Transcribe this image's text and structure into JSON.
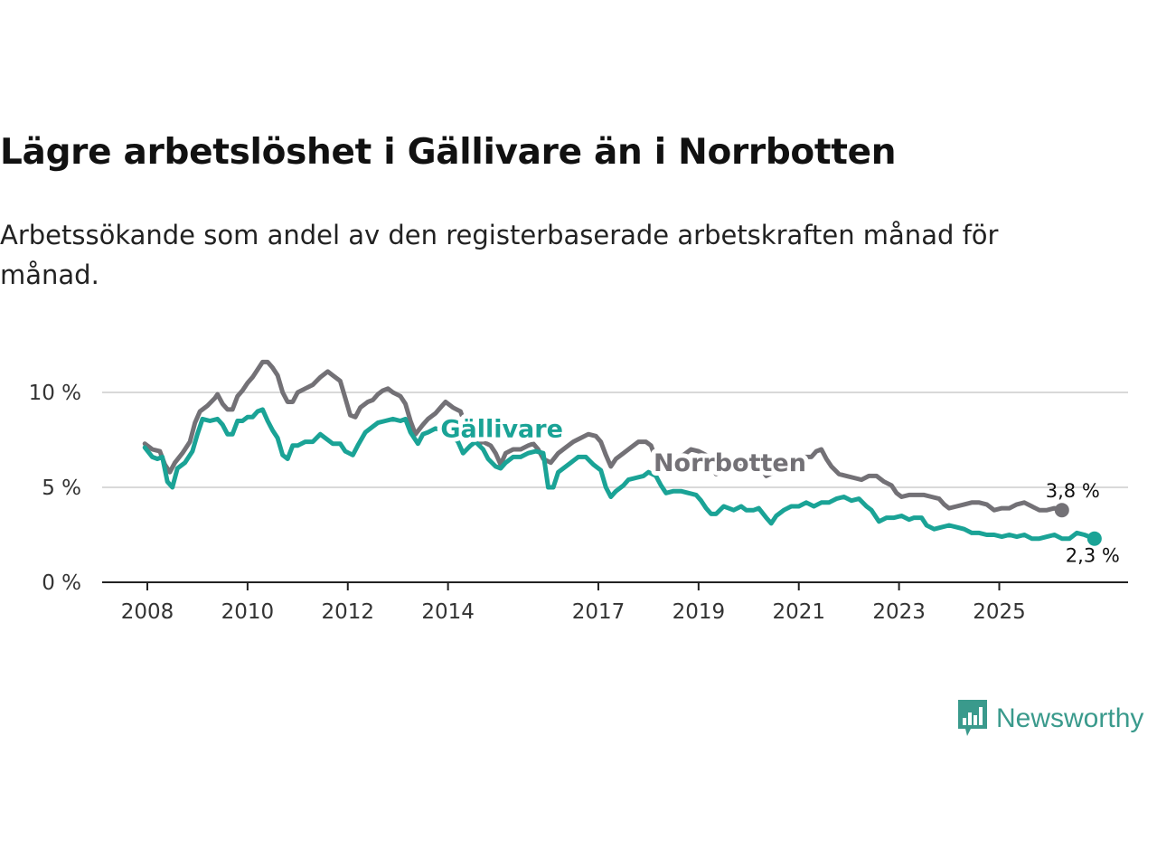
{
  "title": "Lägre arbetslöshet i Gällivare än i Norrbotten",
  "subtitle": "Arbetssökande som andel av den registerbaserade arbetskraften månad för månad.",
  "brand": {
    "name": "Newsworthy",
    "icon": "newsworthy-logo-icon",
    "color": "#3a9a8c"
  },
  "chart_data": {
    "type": "line",
    "title": "Lägre arbetslöshet i Gällivare än i Norrbotten",
    "subtitle": "Arbetssökande som andel av den registerbaserade arbetskraften månad för månad.",
    "xlabel": "",
    "ylabel": "",
    "xlim": [
      2008.0,
      2027.3
    ],
    "ylim": [
      0,
      11
    ],
    "x_ticks": [
      {
        "value": 2008,
        "label": "2008"
      },
      {
        "value": 2010,
        "label": "2010"
      },
      {
        "value": 2012,
        "label": "2012"
      },
      {
        "value": 2014,
        "label": "2014"
      },
      {
        "value": 2017,
        "label": "2017"
      },
      {
        "value": 2019,
        "label": "2019"
      },
      {
        "value": 2021,
        "label": "2021"
      },
      {
        "value": 2023,
        "label": "2023"
      },
      {
        "value": 2025,
        "label": "2025"
      }
    ],
    "y_ticks": [
      {
        "value": 0,
        "label": "0 %"
      },
      {
        "value": 5,
        "label": "5 %"
      },
      {
        "value": 10,
        "label": "10 %"
      }
    ],
    "grid": true,
    "legend": "inline labels",
    "series": [
      {
        "name": "Norrbotten",
        "color": "#737176",
        "end_label": "3,8 %",
        "points": [
          [
            2007.95,
            7.3
          ],
          [
            2008.1,
            7.0
          ],
          [
            2008.25,
            6.9
          ],
          [
            2008.35,
            6.2
          ],
          [
            2008.45,
            5.8
          ],
          [
            2008.55,
            6.3
          ],
          [
            2008.7,
            6.8
          ],
          [
            2008.85,
            7.4
          ],
          [
            2008.95,
            8.4
          ],
          [
            2009.05,
            9.0
          ],
          [
            2009.2,
            9.3
          ],
          [
            2009.35,
            9.7
          ],
          [
            2009.4,
            9.9
          ],
          [
            2009.5,
            9.4
          ],
          [
            2009.6,
            9.1
          ],
          [
            2009.7,
            9.1
          ],
          [
            2009.8,
            9.8
          ],
          [
            2009.9,
            10.1
          ],
          [
            2010.0,
            10.5
          ],
          [
            2010.1,
            10.8
          ],
          [
            2010.2,
            11.2
          ],
          [
            2010.3,
            11.6
          ],
          [
            2010.4,
            11.6
          ],
          [
            2010.5,
            11.3
          ],
          [
            2010.6,
            10.9
          ],
          [
            2010.7,
            10.0
          ],
          [
            2010.8,
            9.5
          ],
          [
            2010.9,
            9.5
          ],
          [
            2011.0,
            10.0
          ],
          [
            2011.15,
            10.2
          ],
          [
            2011.3,
            10.4
          ],
          [
            2011.45,
            10.8
          ],
          [
            2011.6,
            11.1
          ],
          [
            2011.7,
            10.9
          ],
          [
            2011.85,
            10.6
          ],
          [
            2011.95,
            9.7
          ],
          [
            2012.05,
            8.8
          ],
          [
            2012.15,
            8.7
          ],
          [
            2012.25,
            9.2
          ],
          [
            2012.4,
            9.5
          ],
          [
            2012.5,
            9.6
          ],
          [
            2012.6,
            9.9
          ],
          [
            2012.7,
            10.1
          ],
          [
            2012.8,
            10.2
          ],
          [
            2012.9,
            10.0
          ],
          [
            2013.05,
            9.8
          ],
          [
            2013.15,
            9.4
          ],
          [
            2013.25,
            8.5
          ],
          [
            2013.35,
            7.8
          ],
          [
            2013.5,
            8.3
          ],
          [
            2013.6,
            8.6
          ],
          [
            2013.75,
            8.9
          ],
          [
            2013.85,
            9.2
          ],
          [
            2013.95,
            9.5
          ],
          [
            2014.1,
            9.2
          ],
          [
            2014.25,
            9.0
          ],
          [
            2014.35,
            8.2
          ],
          [
            2014.5,
            7.5
          ],
          [
            2014.6,
            7.3
          ],
          [
            2014.7,
            7.4
          ],
          [
            2014.85,
            7.2
          ],
          [
            2014.95,
            6.8
          ],
          [
            2015.05,
            6.2
          ],
          [
            2015.15,
            6.8
          ],
          [
            2015.3,
            7.0
          ],
          [
            2015.45,
            7.0
          ],
          [
            2015.6,
            7.2
          ],
          [
            2015.7,
            7.3
          ],
          [
            2015.8,
            7.0
          ],
          [
            2015.9,
            6.5
          ],
          [
            2016.05,
            6.3
          ],
          [
            2016.2,
            6.8
          ],
          [
            2016.35,
            7.1
          ],
          [
            2016.5,
            7.4
          ],
          [
            2016.65,
            7.6
          ],
          [
            2016.8,
            7.8
          ],
          [
            2016.95,
            7.7
          ],
          [
            2017.05,
            7.4
          ],
          [
            2017.15,
            6.7
          ],
          [
            2017.25,
            6.1
          ],
          [
            2017.35,
            6.5
          ],
          [
            2017.5,
            6.8
          ],
          [
            2017.65,
            7.1
          ],
          [
            2017.8,
            7.4
          ],
          [
            2017.95,
            7.4
          ],
          [
            2018.05,
            7.2
          ],
          [
            2018.15,
            6.5
          ],
          [
            2018.25,
            6.0
          ],
          [
            2018.4,
            6.2
          ],
          [
            2018.55,
            6.6
          ],
          [
            2018.7,
            6.7
          ],
          [
            2018.85,
            7.0
          ],
          [
            2019.0,
            6.9
          ],
          [
            2019.15,
            6.7
          ],
          [
            2019.25,
            6.2
          ],
          [
            2019.35,
            5.7
          ],
          [
            2019.5,
            5.9
          ],
          [
            2019.65,
            6.1
          ],
          [
            2019.8,
            6.3
          ],
          [
            2019.95,
            6.2
          ],
          [
            2020.1,
            6.2
          ],
          [
            2020.25,
            6.0
          ],
          [
            2020.35,
            5.6
          ],
          [
            2020.5,
            5.8
          ],
          [
            2020.65,
            6.0
          ],
          [
            2020.8,
            6.1
          ],
          [
            2020.95,
            6.3
          ],
          [
            2021.1,
            6.6
          ],
          [
            2021.25,
            6.6
          ],
          [
            2021.35,
            6.9
          ],
          [
            2021.45,
            7.0
          ],
          [
            2021.55,
            6.5
          ],
          [
            2021.65,
            6.1
          ],
          [
            2021.8,
            5.7
          ],
          [
            2021.95,
            5.6
          ],
          [
            2022.1,
            5.5
          ],
          [
            2022.25,
            5.4
          ],
          [
            2022.4,
            5.6
          ],
          [
            2022.55,
            5.6
          ],
          [
            2022.7,
            5.3
          ],
          [
            2022.85,
            5.1
          ],
          [
            2022.95,
            4.7
          ],
          [
            2023.05,
            4.5
          ],
          [
            2023.2,
            4.6
          ],
          [
            2023.35,
            4.6
          ],
          [
            2023.5,
            4.6
          ],
          [
            2023.65,
            4.5
          ],
          [
            2023.8,
            4.4
          ],
          [
            2023.9,
            4.1
          ],
          [
            2024.0,
            3.9
          ],
          [
            2024.15,
            4.0
          ],
          [
            2024.3,
            4.1
          ],
          [
            2024.45,
            4.2
          ],
          [
            2024.6,
            4.2
          ],
          [
            2024.75,
            4.1
          ],
          [
            2024.9,
            3.8
          ],
          [
            2025.05,
            3.9
          ],
          [
            2025.2,
            3.9
          ],
          [
            2025.35,
            4.1
          ],
          [
            2025.5,
            4.2
          ],
          [
            2025.65,
            4.0
          ],
          [
            2025.8,
            3.8
          ],
          [
            2025.95,
            3.8
          ],
          [
            2026.1,
            3.9
          ],
          [
            2026.25,
            3.8
          ]
        ]
      },
      {
        "name": "Gällivare",
        "color": "#1aa396",
        "end_label": "2,3 %",
        "points": [
          [
            2007.95,
            7.1
          ],
          [
            2008.1,
            6.6
          ],
          [
            2008.2,
            6.5
          ],
          [
            2008.3,
            6.6
          ],
          [
            2008.4,
            5.3
          ],
          [
            2008.5,
            5.0
          ],
          [
            2008.6,
            6.0
          ],
          [
            2008.75,
            6.3
          ],
          [
            2008.9,
            6.9
          ],
          [
            2009.0,
            7.8
          ],
          [
            2009.1,
            8.6
          ],
          [
            2009.25,
            8.5
          ],
          [
            2009.4,
            8.6
          ],
          [
            2009.5,
            8.3
          ],
          [
            2009.6,
            7.8
          ],
          [
            2009.7,
            7.8
          ],
          [
            2009.8,
            8.5
          ],
          [
            2009.9,
            8.5
          ],
          [
            2010.0,
            8.7
          ],
          [
            2010.1,
            8.7
          ],
          [
            2010.2,
            9.0
          ],
          [
            2010.3,
            9.1
          ],
          [
            2010.4,
            8.5
          ],
          [
            2010.5,
            8.0
          ],
          [
            2010.6,
            7.6
          ],
          [
            2010.7,
            6.7
          ],
          [
            2010.8,
            6.5
          ],
          [
            2010.9,
            7.2
          ],
          [
            2011.0,
            7.2
          ],
          [
            2011.15,
            7.4
          ],
          [
            2011.3,
            7.4
          ],
          [
            2011.45,
            7.8
          ],
          [
            2011.6,
            7.5
          ],
          [
            2011.7,
            7.3
          ],
          [
            2011.85,
            7.3
          ],
          [
            2011.95,
            6.9
          ],
          [
            2012.1,
            6.7
          ],
          [
            2012.2,
            7.2
          ],
          [
            2012.35,
            7.9
          ],
          [
            2012.5,
            8.2
          ],
          [
            2012.6,
            8.4
          ],
          [
            2012.75,
            8.5
          ],
          [
            2012.9,
            8.6
          ],
          [
            2013.05,
            8.5
          ],
          [
            2013.15,
            8.6
          ],
          [
            2013.25,
            7.9
          ],
          [
            2013.4,
            7.3
          ],
          [
            2013.5,
            7.8
          ],
          [
            2013.6,
            7.9
          ],
          [
            2013.75,
            8.1
          ],
          [
            2013.9,
            8.0
          ],
          [
            2014.05,
            7.8
          ],
          [
            2014.2,
            7.4
          ],
          [
            2014.3,
            6.8
          ],
          [
            2014.45,
            7.2
          ],
          [
            2014.55,
            7.4
          ],
          [
            2014.7,
            7.0
          ],
          [
            2014.8,
            6.5
          ],
          [
            2014.95,
            6.1
          ],
          [
            2015.05,
            6.0
          ],
          [
            2015.15,
            6.3
          ],
          [
            2015.3,
            6.6
          ],
          [
            2015.45,
            6.6
          ],
          [
            2015.6,
            6.8
          ],
          [
            2015.75,
            6.9
          ],
          [
            2015.9,
            6.8
          ],
          [
            2016.0,
            5.0
          ],
          [
            2016.1,
            5.0
          ],
          [
            2016.2,
            5.8
          ],
          [
            2016.3,
            6.0
          ],
          [
            2016.45,
            6.3
          ],
          [
            2016.6,
            6.6
          ],
          [
            2016.75,
            6.6
          ],
          [
            2016.9,
            6.2
          ],
          [
            2017.05,
            5.9
          ],
          [
            2017.15,
            5.0
          ],
          [
            2017.25,
            4.5
          ],
          [
            2017.35,
            4.8
          ],
          [
            2017.5,
            5.1
          ],
          [
            2017.6,
            5.4
          ],
          [
            2017.75,
            5.5
          ],
          [
            2017.9,
            5.6
          ],
          [
            2018.0,
            5.8
          ],
          [
            2018.15,
            5.6
          ],
          [
            2018.25,
            5.1
          ],
          [
            2018.35,
            4.7
          ],
          [
            2018.5,
            4.8
          ],
          [
            2018.65,
            4.8
          ],
          [
            2018.8,
            4.7
          ],
          [
            2018.95,
            4.6
          ],
          [
            2019.05,
            4.3
          ],
          [
            2019.15,
            3.9
          ],
          [
            2019.25,
            3.6
          ],
          [
            2019.35,
            3.6
          ],
          [
            2019.5,
            4.0
          ],
          [
            2019.6,
            3.9
          ],
          [
            2019.7,
            3.8
          ],
          [
            2019.85,
            4.0
          ],
          [
            2019.95,
            3.8
          ],
          [
            2020.1,
            3.8
          ],
          [
            2020.2,
            3.9
          ],
          [
            2020.35,
            3.4
          ],
          [
            2020.45,
            3.1
          ],
          [
            2020.55,
            3.5
          ],
          [
            2020.7,
            3.8
          ],
          [
            2020.85,
            4.0
          ],
          [
            2021.0,
            4.0
          ],
          [
            2021.15,
            4.2
          ],
          [
            2021.3,
            4.0
          ],
          [
            2021.45,
            4.2
          ],
          [
            2021.6,
            4.2
          ],
          [
            2021.75,
            4.4
          ],
          [
            2021.9,
            4.5
          ],
          [
            2022.05,
            4.3
          ],
          [
            2022.2,
            4.4
          ],
          [
            2022.35,
            4.0
          ],
          [
            2022.45,
            3.8
          ],
          [
            2022.6,
            3.2
          ],
          [
            2022.75,
            3.4
          ],
          [
            2022.9,
            3.4
          ],
          [
            2023.05,
            3.5
          ],
          [
            2023.2,
            3.3
          ],
          [
            2023.3,
            3.4
          ],
          [
            2023.45,
            3.4
          ],
          [
            2023.55,
            3.0
          ],
          [
            2023.7,
            2.8
          ],
          [
            2023.85,
            2.9
          ],
          [
            2024.0,
            3.0
          ],
          [
            2024.15,
            2.9
          ],
          [
            2024.3,
            2.8
          ],
          [
            2024.45,
            2.6
          ],
          [
            2024.6,
            2.6
          ],
          [
            2024.75,
            2.5
          ],
          [
            2024.9,
            2.5
          ],
          [
            2025.05,
            2.4
          ],
          [
            2025.2,
            2.5
          ],
          [
            2025.35,
            2.4
          ],
          [
            2025.5,
            2.5
          ],
          [
            2025.65,
            2.3
          ],
          [
            2025.8,
            2.3
          ],
          [
            2025.95,
            2.4
          ],
          [
            2026.1,
            2.5
          ],
          [
            2026.25,
            2.3
          ],
          [
            2026.4,
            2.3
          ],
          [
            2026.55,
            2.6
          ],
          [
            2026.7,
            2.5
          ],
          [
            2026.8,
            2.4
          ],
          [
            2026.9,
            2.3
          ]
        ]
      }
    ]
  }
}
